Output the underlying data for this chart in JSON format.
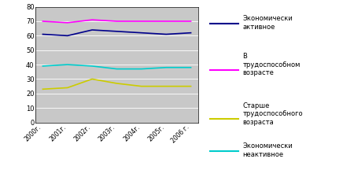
{
  "years": [
    "2000г.",
    "2001г.",
    "2002г.",
    "2003г.",
    "2004г.",
    "2005г.",
    "2006 г."
  ],
  "series": [
    {
      "label": "Экономически\nактивное",
      "color": "#00008B",
      "values": [
        61,
        60,
        64,
        63,
        62,
        61,
        62
      ]
    },
    {
      "label": "В\nтрудоспособном\nвозрасте",
      "color": "#FF00FF",
      "values": [
        70,
        69,
        71,
        70,
        70,
        70,
        70
      ]
    },
    {
      "label": "Старше\nтрудоспособного\nвозраста",
      "color": "#CCCC00",
      "values": [
        23,
        24,
        30,
        27,
        25,
        25,
        25
      ]
    },
    {
      "label": "Экономически\nнеактивное",
      "color": "#00CCCC",
      "values": [
        39,
        40,
        39,
        37,
        37,
        38,
        38
      ]
    }
  ],
  "ylim": [
    0,
    80
  ],
  "yticks": [
    0,
    10,
    20,
    30,
    40,
    50,
    60,
    70,
    80
  ],
  "plot_bg": "#C8C8C8",
  "fig_bg": "#FFFFFF",
  "legend_bg": "#FFFFFF",
  "linewidth": 1.2,
  "figsize": [
    4.5,
    2.16
  ],
  "dpi": 100
}
